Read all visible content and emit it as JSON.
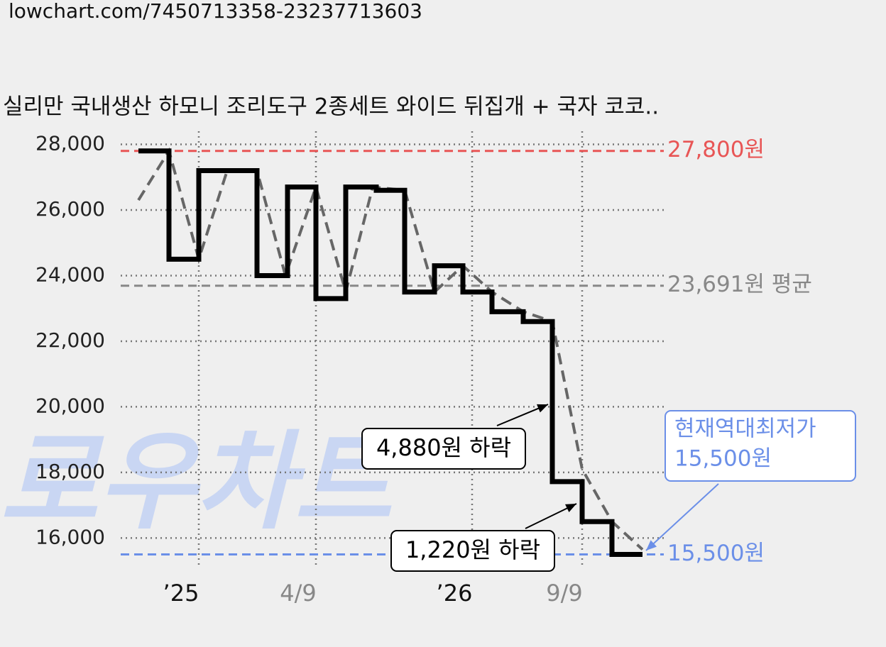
{
  "url": "lowchart.com/7450713358-23237713603",
  "chart_data": {
    "type": "step",
    "title": "실리만 국내생산 하모니 조리도구 2종세트 와이드 뒤집개 + 국자 코코..",
    "watermark": "로우차트",
    "xlim": [
      170,
      935
    ],
    "xticks": [
      {
        "value": 280,
        "label": "’25",
        "color": "#111111"
      },
      {
        "value": 445,
        "label": "4/9",
        "color": "#888888"
      },
      {
        "value": 665,
        "label": "’26",
        "color": "#111111"
      },
      {
        "value": 820,
        "label": "9/9",
        "color": "#888888"
      }
    ],
    "ylim": [
      15100,
      28400
    ],
    "yticks": [
      {
        "value": 16000,
        "label": "16,000"
      },
      {
        "value": 18000,
        "label": "18,000"
      },
      {
        "value": 20000,
        "label": "20,000"
      },
      {
        "value": 22000,
        "label": "22,000"
      },
      {
        "value": 24000,
        "label": "24,000"
      },
      {
        "value": 26000,
        "label": "26,000"
      },
      {
        "value": 28000,
        "label": "28,000"
      }
    ],
    "grid": true,
    "series": [
      {
        "name": "price",
        "color": "#000000",
        "x": [
          195,
          238,
          280,
          362,
          405,
          445,
          487,
          530,
          570,
          612,
          652,
          693,
          737,
          778,
          820,
          862,
          905
        ],
        "values": [
          27800,
          24500,
          27200,
          24000,
          26700,
          23300,
          26700,
          26600,
          23500,
          24300,
          23500,
          22900,
          22600,
          17720,
          16500,
          15500,
          15500
        ]
      },
      {
        "name": "trend",
        "color": "#666666",
        "x": [
          195,
          238,
          280,
          320,
          362,
          402,
          445,
          487,
          525,
          570,
          612,
          652,
          693,
          737,
          778,
          820,
          862,
          905
        ],
        "values": [
          26300,
          27800,
          24500,
          27200,
          27200,
          24000,
          26700,
          23500,
          26700,
          26600,
          23500,
          24300,
          23500,
          22900,
          22600,
          18100,
          16500,
          15650
        ]
      }
    ],
    "reference_lines": [
      {
        "value": 27800,
        "label": "27,800원",
        "color": "#e85555"
      },
      {
        "value": 23691,
        "label": "23,691원 평균",
        "color": "#888888"
      },
      {
        "value": 15500,
        "label": "15,500원",
        "color": "#6b8fe8"
      }
    ],
    "annotations": [
      {
        "text": "4,880원 하락"
      },
      {
        "text": "1,220원 하락"
      },
      {
        "text": [
          "현재역대최저가",
          "15,500원"
        ]
      }
    ]
  }
}
